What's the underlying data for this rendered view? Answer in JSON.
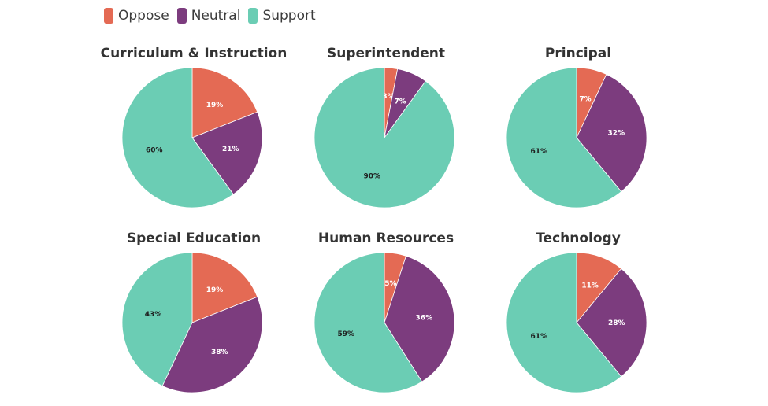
{
  "chart_data": {
    "type": "pie",
    "colors": {
      "Oppose": "#E46A54",
      "Neutral": "#7C3C7E",
      "Support": "#6BCDB4"
    },
    "legend": {
      "position": "top-left",
      "entries": [
        "Oppose",
        "Neutral",
        "Support"
      ]
    },
    "charts": [
      {
        "title": "Curriculum & Instruction",
        "slices": [
          {
            "name": "Oppose",
            "value": 19,
            "label": "19%"
          },
          {
            "name": "Neutral",
            "value": 21,
            "label": "21%"
          },
          {
            "name": "Support",
            "value": 60,
            "label": "60%"
          }
        ]
      },
      {
        "title": "Superintendent",
        "slices": [
          {
            "name": "Oppose",
            "value": 3,
            "label": "3%"
          },
          {
            "name": "Neutral",
            "value": 7,
            "label": "7%"
          },
          {
            "name": "Support",
            "value": 90,
            "label": "90%"
          }
        ]
      },
      {
        "title": "Principal",
        "slices": [
          {
            "name": "Oppose",
            "value": 7,
            "label": "7%"
          },
          {
            "name": "Neutral",
            "value": 32,
            "label": "32%"
          },
          {
            "name": "Support",
            "value": 61,
            "label": "61%"
          }
        ]
      },
      {
        "title": "Special Education",
        "slices": [
          {
            "name": "Oppose",
            "value": 19,
            "label": "19%"
          },
          {
            "name": "Neutral",
            "value": 38,
            "label": "38%"
          },
          {
            "name": "Support",
            "value": 43,
            "label": "43%"
          }
        ]
      },
      {
        "title": "Human Resources",
        "slices": [
          {
            "name": "Oppose",
            "value": 5,
            "label": "5%"
          },
          {
            "name": "Neutral",
            "value": 36,
            "label": "36%"
          },
          {
            "name": "Support",
            "value": 59,
            "label": "59%"
          }
        ]
      },
      {
        "title": "Technology",
        "slices": [
          {
            "name": "Oppose",
            "value": 11,
            "label": "11%"
          },
          {
            "name": "Neutral",
            "value": 28,
            "label": "28%"
          },
          {
            "name": "Support",
            "value": 61,
            "label": "61%"
          }
        ]
      }
    ]
  }
}
